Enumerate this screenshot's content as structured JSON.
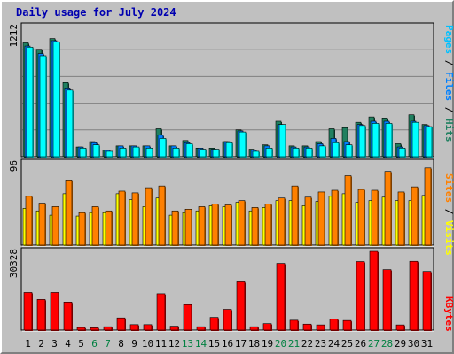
{
  "title": "Daily usage for July 2024",
  "colors": {
    "hits": "#00ffff",
    "hits_shade": "#00b0b0",
    "files": "#0080ff",
    "files_shade": "#0050a0",
    "pages": "#00c0ff",
    "pages_shade": "#0090c0",
    "visits": "#ff8000",
    "visits_shade": "#b05800",
    "sites": "#ffff00",
    "sites_shade": "#b0b000",
    "kbytes": "#ff0000",
    "kbytes_shade": "#a00000",
    "hits_bg": "#208060",
    "weekend": "#008040",
    "weekday": "#000000"
  },
  "chart_data": [
    {
      "type": "bar",
      "panel": "top",
      "y_max_label": "1212",
      "legend": [
        "Pages",
        "Files",
        "Hits"
      ],
      "legend_separator": "/",
      "x": [
        "1",
        "2",
        "3",
        "4",
        "5",
        "6",
        "7",
        "8",
        "9",
        "10",
        "11",
        "12",
        "13",
        "14",
        "15",
        "16",
        "17",
        "18",
        "19",
        "20",
        "21",
        "22",
        "23",
        "24",
        "25",
        "26",
        "27",
        "28",
        "29",
        "30",
        "31"
      ],
      "series": [
        {
          "name": "Hits",
          "values": [
            1060,
            1000,
            1100,
            690,
            90,
            140,
            60,
            100,
            100,
            100,
            260,
            100,
            150,
            80,
            80,
            140,
            250,
            70,
            110,
            330,
            100,
            100,
            140,
            260,
            270,
            320,
            370,
            360,
            120,
            390,
            300
          ]
        },
        {
          "name": "Files",
          "values": [
            1030,
            960,
            1080,
            640,
            90,
            130,
            60,
            100,
            100,
            100,
            200,
            100,
            130,
            80,
            70,
            140,
            240,
            60,
            100,
            300,
            90,
            90,
            120,
            170,
            140,
            300,
            330,
            330,
            90,
            330,
            290
          ]
        },
        {
          "name": "Pages",
          "values": [
            1020,
            940,
            1070,
            620,
            80,
            110,
            50,
            80,
            90,
            80,
            170,
            80,
            120,
            70,
            70,
            130,
            230,
            50,
            80,
            300,
            80,
            80,
            100,
            130,
            110,
            290,
            310,
            310,
            80,
            320,
            280
          ]
        }
      ]
    },
    {
      "type": "bar",
      "panel": "middle",
      "y_max_label": "96",
      "legend": [
        "Sites",
        "Visits"
      ],
      "legend_separator": "/",
      "x": [
        "1",
        "2",
        "3",
        "4",
        "5",
        "6",
        "7",
        "8",
        "9",
        "10",
        "11",
        "12",
        "13",
        "14",
        "15",
        "16",
        "17",
        "18",
        "19",
        "20",
        "21",
        "22",
        "23",
        "24",
        "25",
        "26",
        "27",
        "28",
        "29",
        "30",
        "31"
      ],
      "series": [
        {
          "name": "Visits",
          "values": [
            57,
            49,
            45,
            76,
            38,
            45,
            40,
            63,
            61,
            67,
            69,
            40,
            42,
            45,
            48,
            47,
            52,
            44,
            48,
            55,
            69,
            56,
            62,
            64,
            81,
            65,
            64,
            86,
            62,
            68,
            90
          ]
        },
        {
          "name": "Sites",
          "values": [
            43,
            40,
            35,
            60,
            34,
            38,
            38,
            60,
            53,
            45,
            55,
            35,
            38,
            40,
            46,
            45,
            50,
            40,
            44,
            52,
            52,
            46,
            51,
            57,
            60,
            50,
            52,
            56,
            52,
            52,
            58
          ]
        }
      ]
    },
    {
      "type": "bar",
      "panel": "bottom",
      "y_max_label": "30328",
      "legend": [
        "KBytes"
      ],
      "x": [
        "1",
        "2",
        "3",
        "4",
        "5",
        "6",
        "7",
        "8",
        "9",
        "10",
        "11",
        "12",
        "13",
        "14",
        "15",
        "16",
        "17",
        "18",
        "19",
        "20",
        "21",
        "22",
        "23",
        "24",
        "25",
        "26",
        "27",
        "28",
        "29",
        "30",
        "31"
      ],
      "series": [
        {
          "name": "KBytes",
          "values": [
            14500,
            11800,
            14500,
            10800,
            1000,
            900,
            1300,
            4700,
            2100,
            2100,
            14000,
            1500,
            9800,
            1300,
            4900,
            8000,
            18600,
            1300,
            2500,
            25700,
            3800,
            2300,
            2000,
            4200,
            3700,
            26400,
            30328,
            23300,
            2000,
            26500,
            22600
          ]
        }
      ]
    }
  ],
  "x_labels": [
    "1",
    "2",
    "3",
    "4",
    "5",
    "6",
    "7",
    "8",
    "9",
    "10",
    "11",
    "12",
    "13",
    "14",
    "15",
    "16",
    "17",
    "18",
    "19",
    "20",
    "21",
    "22",
    "23",
    "24",
    "25",
    "26",
    "27",
    "28",
    "29",
    "30",
    "31"
  ],
  "weekend_days": [
    6,
    7,
    13,
    14,
    20,
    21,
    27,
    28
  ]
}
